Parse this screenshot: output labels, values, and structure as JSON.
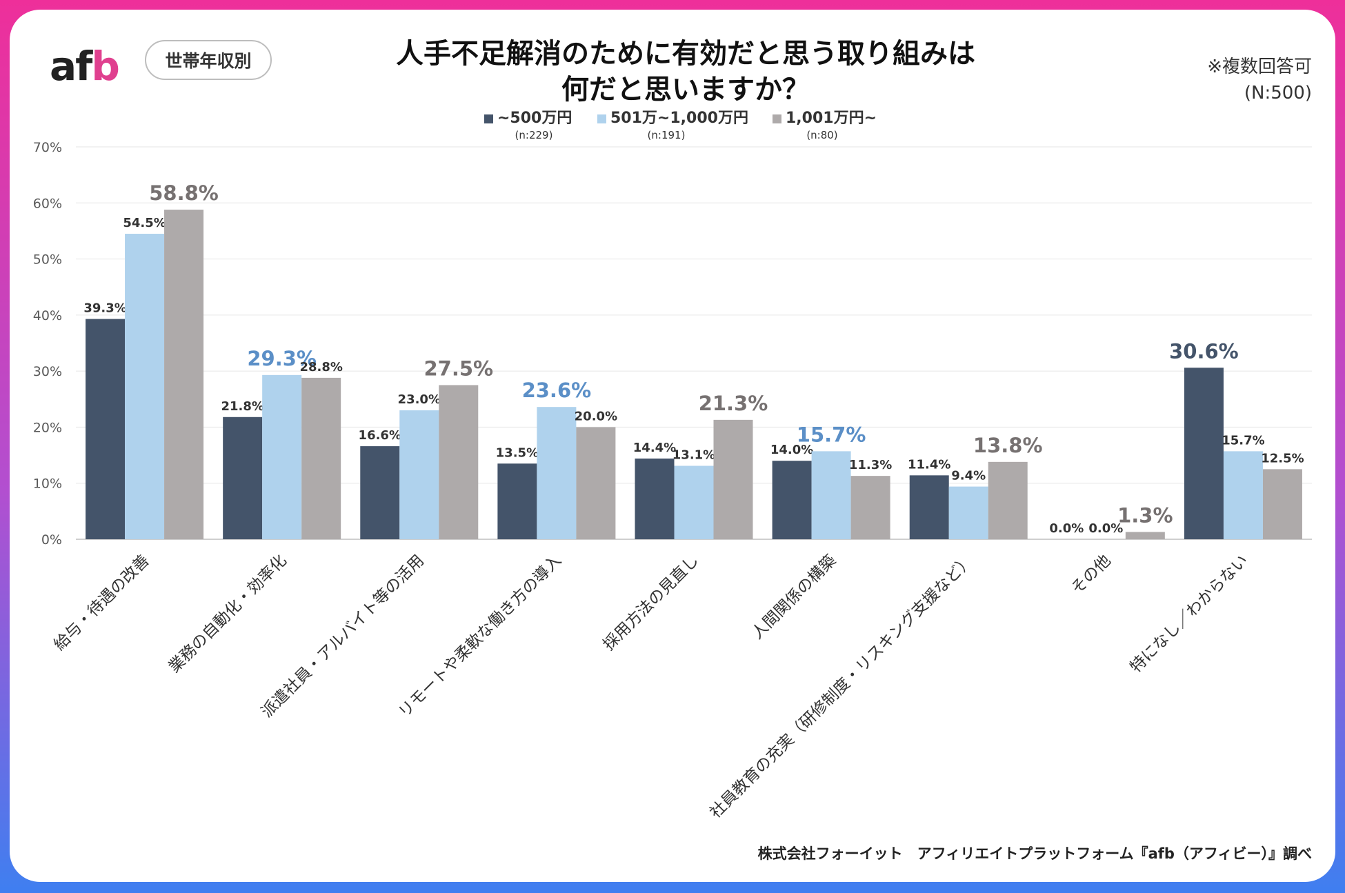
{
  "header": {
    "logo_text_main": "af",
    "logo_text_accent": "b",
    "tag_label": "世帯年収別",
    "title_line1": "人手不足解消のために有効だと思う取り組みは",
    "title_line2": "何だと思いますか？",
    "note_multi": "※複数回答可",
    "note_n": "(N:500)"
  },
  "footer": {
    "source": "株式会社フォーイット　アフィリエイトプラットフォーム『afb（アフィビー）』調べ"
  },
  "colors": {
    "series1": "#44546a",
    "series2": "#afd2ed",
    "series3": "#aeaaaa",
    "highlight_blue": "#5b8fc7",
    "highlight_dark": "#44546a",
    "highlight_grey": "#767171"
  },
  "chart_data": {
    "type": "bar",
    "ylim": [
      0,
      70
    ],
    "yticks": [
      0,
      10,
      20,
      30,
      40,
      50,
      60,
      70
    ],
    "ytick_labels": [
      "0%",
      "10%",
      "20%",
      "30%",
      "40%",
      "50%",
      "60%",
      "70%"
    ],
    "grid": true,
    "legend_position": "top-center",
    "categories": [
      "給与・待遇の改善",
      "業務の自動化・効率化",
      "派遣社員・アルバイト等の活用",
      "リモートや柔軟な働き方の導入",
      "採用方法の見直し",
      "人間関係の構築",
      "社員教育の充実（研修制度・リスキング支援など）",
      "その他",
      "特になし／わからない"
    ],
    "series": [
      {
        "name": "~500万円",
        "n_label": "(n:229)",
        "values": [
          39.3,
          21.8,
          16.6,
          13.5,
          14.4,
          14.0,
          11.4,
          0.0,
          30.6
        ],
        "labels": [
          "39.3%",
          "21.8%",
          "16.6%",
          "13.5%",
          "14.4%",
          "14.0%",
          "11.4%",
          "0.0%",
          "30.6%"
        ]
      },
      {
        "name": "501万~1,000万円",
        "n_label": "(n:191)",
        "values": [
          54.5,
          29.3,
          23.0,
          23.6,
          13.1,
          15.7,
          9.4,
          0.0,
          15.7
        ],
        "labels": [
          "54.5%",
          "29.3%",
          "23.0%",
          "23.6%",
          "13.1%",
          "15.7%",
          "9.4%",
          "0.0%",
          "15.7%"
        ]
      },
      {
        "name": "1,001万円~",
        "n_label": "(n:80)",
        "values": [
          58.8,
          28.8,
          27.5,
          20.0,
          21.3,
          11.3,
          13.8,
          1.3,
          12.5
        ],
        "labels": [
          "58.8%",
          "28.8%",
          "27.5%",
          "20.0%",
          "21.3%",
          "11.3%",
          "13.8%",
          "1.3%",
          "12.5%"
        ]
      }
    ],
    "highlighted": [
      {
        "category": 0,
        "series": 2
      },
      {
        "category": 1,
        "series": 1
      },
      {
        "category": 2,
        "series": 2
      },
      {
        "category": 3,
        "series": 1
      },
      {
        "category": 4,
        "series": 2
      },
      {
        "category": 5,
        "series": 1
      },
      {
        "category": 6,
        "series": 2
      },
      {
        "category": 7,
        "series": 2
      },
      {
        "category": 8,
        "series": 0
      }
    ]
  }
}
